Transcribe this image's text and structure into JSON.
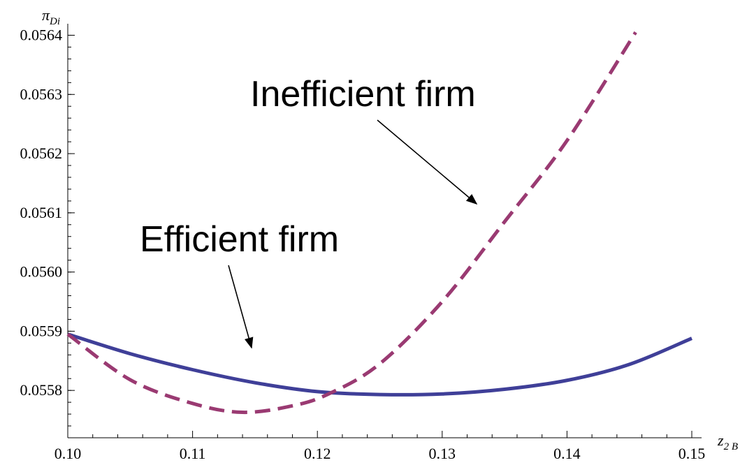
{
  "chart_data": {
    "type": "line",
    "xlabel": {
      "symbol": "z",
      "subscript": "2 B"
    },
    "ylabel": {
      "symbol": "π",
      "subscript": "Di"
    },
    "xlim": [
      0.1,
      0.15
    ],
    "ylim": [
      0.05572,
      0.05641
    ],
    "x_ticks": [
      "0.10",
      "0.11",
      "0.12",
      "0.13",
      "0.14",
      "0.15"
    ],
    "y_ticks": [
      "0.0558",
      "0.0559",
      "0.0560",
      "0.0561",
      "0.0562",
      "0.0563",
      "0.0564"
    ],
    "grid": false,
    "legend": null,
    "series": [
      {
        "color": "#3f3f98",
        "dash": "solid",
        "x": [
          0.1,
          0.105,
          0.11,
          0.115,
          0.12,
          0.125,
          0.13,
          0.135,
          0.14,
          0.145,
          0.15
        ],
        "values": [
          0.055895,
          0.055862,
          0.055835,
          0.055813,
          0.055798,
          0.055793,
          0.055794,
          0.055802,
          0.055817,
          0.055844,
          0.055888
        ]
      },
      {
        "color": "#9a3a72",
        "dash": "dashed",
        "x": [
          0.1,
          0.105,
          0.11,
          0.114,
          0.118,
          0.121,
          0.125,
          0.13,
          0.135,
          0.14,
          0.1455
        ],
        "values": [
          0.055895,
          0.055818,
          0.055778,
          0.055763,
          0.055774,
          0.055795,
          0.055845,
          0.05595,
          0.056085,
          0.056222,
          0.056405
        ]
      }
    ],
    "annotations": [
      {
        "text": "Inefficient firm",
        "arrow_to": [
          0.133,
          0.0561
        ]
      },
      {
        "text": "Efficient firm",
        "arrow_to": [
          0.1155,
          0.05582
        ]
      }
    ]
  }
}
